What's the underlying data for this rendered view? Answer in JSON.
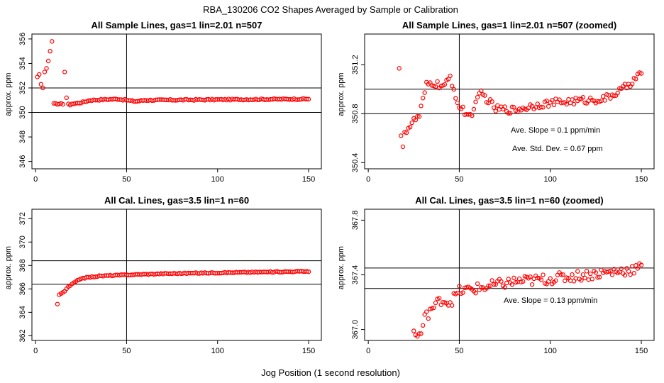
{
  "figure": {
    "suptitle": "RBA_130206  CO2 Shapes Averaged by Sample or Calibration",
    "xlabel": "Jog Position (1 second resolution)"
  },
  "colors": {
    "points": "#ff0000",
    "axes": "#000000",
    "background": "#ffffff"
  },
  "chart_data": [
    {
      "type": "scatter",
      "title": "All Sample Lines, gas=1 lin=2.01 n=507",
      "ylabel": "approx. ppm",
      "xlim": [
        -2,
        157
      ],
      "ylim": [
        345.4,
        356.4
      ],
      "xticks": [
        0,
        50,
        100,
        150
      ],
      "yticks": [
        346,
        348,
        350,
        352,
        354,
        356
      ],
      "vline": 50,
      "hlines": [
        352,
        350
      ],
      "annotations": [],
      "series": {
        "mode": "generated",
        "x_start": 1,
        "x_end": 150,
        "explicit": [
          [
            1,
            352.9
          ],
          [
            2,
            353.1
          ],
          [
            3,
            352.3
          ],
          [
            4,
            352.0
          ],
          [
            5,
            353.3
          ],
          [
            6,
            353.6
          ],
          [
            7,
            354.2
          ],
          [
            8,
            355.0
          ],
          [
            9,
            355.8
          ],
          [
            16,
            353.3
          ],
          [
            17,
            351.2
          ],
          [
            18,
            350.7
          ],
          [
            19,
            350.6
          ],
          [
            20,
            350.7
          ]
        ],
        "levels": [
          [
            20,
            350.7
          ],
          [
            25,
            350.8
          ],
          [
            30,
            351.0
          ],
          [
            45,
            351.1
          ],
          [
            55,
            350.9
          ],
          [
            60,
            351.0
          ],
          [
            150,
            351.1
          ]
        ],
        "noise": 0.05
      }
    },
    {
      "type": "scatter",
      "title": "All Sample Lines, gas=1 lin=2.01 n=507 (zoomed)",
      "ylabel": "approx. ppm",
      "xlim": [
        -2,
        157
      ],
      "ylim": [
        350.35,
        351.45
      ],
      "xticks": [
        0,
        50,
        100,
        150
      ],
      "yticks": [
        350.4,
        350.8,
        351.2
      ],
      "ytick_labels": [
        "350.4",
        "350.8",
        "351.2"
      ],
      "vline": 50,
      "hlines": [
        351.0,
        350.8
      ],
      "annotations": [
        "Ave. Slope =  0.1  ppm/min",
        "Ave. Std. Dev. =  0.67  ppm"
      ],
      "series": {
        "mode": "generated",
        "x_start": 17,
        "x_end": 150,
        "explicit": [
          [
            17,
            351.17
          ],
          [
            18,
            350.62
          ],
          [
            19,
            350.53
          ],
          [
            20,
            350.65
          ]
        ],
        "levels": [
          [
            20,
            350.65
          ],
          [
            25,
            350.74
          ],
          [
            28,
            350.78
          ],
          [
            32,
            351.03
          ],
          [
            35,
            351.05
          ],
          [
            42,
            351.02
          ],
          [
            45,
            351.1
          ],
          [
            50,
            350.85
          ],
          [
            56,
            350.78
          ],
          [
            62,
            350.97
          ],
          [
            70,
            350.84
          ],
          [
            80,
            350.83
          ],
          [
            95,
            350.88
          ],
          [
            110,
            350.9
          ],
          [
            130,
            350.92
          ],
          [
            140,
            351.0
          ],
          [
            150,
            351.13
          ]
        ],
        "noise": 0.03
      }
    },
    {
      "type": "scatter",
      "title": "All Cal. Lines, gas=3.5 lin=1 n=60",
      "ylabel": "approx. ppm",
      "xlim": [
        -2,
        157
      ],
      "ylim": [
        361.6,
        372.8
      ],
      "xticks": [
        0,
        50,
        100,
        150
      ],
      "yticks": [
        362,
        364,
        366,
        368,
        370,
        372
      ],
      "vline": 50,
      "hlines": [
        368.4,
        366.4
      ],
      "annotations": [],
      "series": {
        "mode": "generated",
        "x_start": 12,
        "x_end": 150,
        "explicit": [
          [
            12,
            364.7
          ],
          [
            13,
            365.5
          ],
          [
            14,
            365.6
          ],
          [
            15,
            365.7
          ],
          [
            16,
            365.8
          ]
        ],
        "levels": [
          [
            16,
            365.9
          ],
          [
            20,
            366.4
          ],
          [
            25,
            366.9
          ],
          [
            35,
            367.1
          ],
          [
            50,
            367.2
          ],
          [
            70,
            367.3
          ],
          [
            150,
            367.5
          ]
        ],
        "noise": 0.04
      }
    },
    {
      "type": "scatter",
      "title": "All Cal. Lines, gas=3.5 lin=1 n=60 (zoomed)",
      "ylabel": "approx. ppm",
      "xlim": [
        -2,
        157
      ],
      "ylim": [
        366.92,
        367.88
      ],
      "xticks": [
        0,
        50,
        100,
        150
      ],
      "yticks": [
        367.0,
        367.4,
        367.8
      ],
      "ytick_labels": [
        "367.0",
        "367.4",
        "367.8"
      ],
      "vline": 50,
      "hlines": [
        367.45,
        367.3
      ],
      "annotations": [
        "Ave. Slope =  0.13  ppm/min"
      ],
      "series": {
        "mode": "generated",
        "x_start": 25,
        "x_end": 150,
        "explicit": [
          [
            25,
            366.99
          ],
          [
            26,
            366.96
          ],
          [
            27,
            366.95
          ],
          [
            28,
            366.97
          ],
          [
            29,
            366.97
          ],
          [
            30,
            367.03
          ],
          [
            31,
            367.11
          ],
          [
            32,
            367.13
          ],
          [
            33,
            367.08
          ],
          [
            34,
            367.15
          ]
        ],
        "levels": [
          [
            35,
            367.15
          ],
          [
            40,
            367.22
          ],
          [
            45,
            367.2
          ],
          [
            50,
            367.28
          ],
          [
            60,
            367.3
          ],
          [
            80,
            367.35
          ],
          [
            100,
            367.37
          ],
          [
            120,
            367.4
          ],
          [
            140,
            367.43
          ],
          [
            150,
            367.45
          ]
        ],
        "noise": 0.04
      }
    }
  ]
}
